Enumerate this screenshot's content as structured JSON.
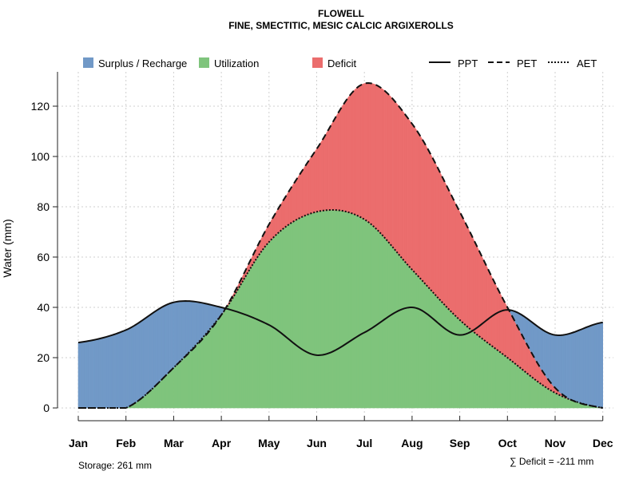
{
  "chart_data": {
    "type": "area",
    "title": "FLOWELL",
    "subtitle": "FINE, SMECTITIC, MESIC CALCIC ARGIXEROLLS",
    "xlabel": "",
    "ylabel": "Water (mm)",
    "ylim": [
      0,
      132
    ],
    "yticks": [
      "0",
      "20",
      "40",
      "60",
      "80",
      "100",
      "120"
    ],
    "categories": [
      "Jan",
      "Feb",
      "Mar",
      "Apr",
      "May",
      "Jun",
      "Jul",
      "Aug",
      "Sep",
      "Oct",
      "Nov",
      "Dec"
    ],
    "grid": true,
    "legend_position": "top",
    "legend": {
      "fills": [
        {
          "label": "Surplus / Recharge",
          "color": "#7199C7"
        },
        {
          "label": "Utilization",
          "color": "#7FC47C"
        },
        {
          "label": "Deficit",
          "color": "#EB6D6D"
        }
      ],
      "lines": [
        {
          "label": "PPT",
          "style": "solid"
        },
        {
          "label": "PET",
          "style": "dashed"
        },
        {
          "label": "AET",
          "style": "dotted"
        }
      ]
    },
    "series": [
      {
        "name": "PPT",
        "values": [
          26,
          31,
          42,
          40,
          33,
          21,
          30,
          40,
          29,
          39,
          29,
          34
        ]
      },
      {
        "name": "PET",
        "values": [
          0,
          0,
          16,
          37,
          73,
          103,
          129,
          113,
          78,
          40,
          8,
          0
        ]
      },
      {
        "name": "AET",
        "values": [
          0,
          0,
          16,
          37,
          66,
          78,
          75,
          55,
          35,
          20,
          6,
          0
        ]
      }
    ],
    "annotations": {
      "storage": "Storage: 261 mm",
      "deficit": "∑ Deficit = -211 mm"
    }
  },
  "colors": {
    "surplus": "#7199C7",
    "utilization": "#7FC47C",
    "deficit": "#EB6D6D",
    "grid": "#cfcfcf",
    "axis": "#222222"
  }
}
